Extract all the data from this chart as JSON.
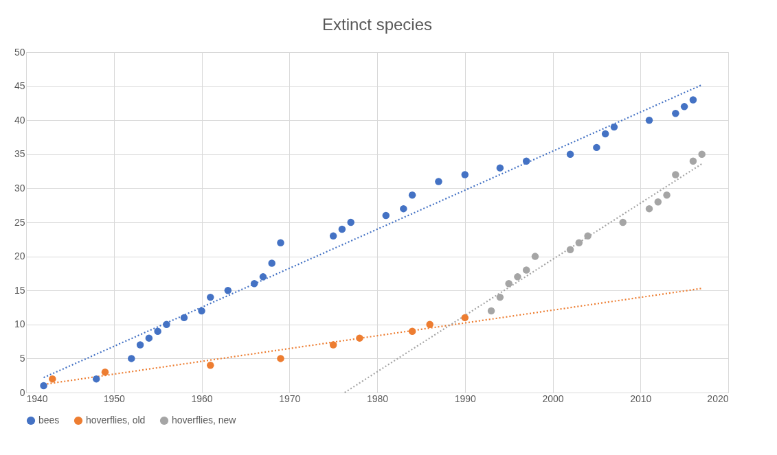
{
  "chart_data": {
    "type": "scatter",
    "title": "Extinct species",
    "xlim": [
      1940,
      2020
    ],
    "xticks": [
      1940,
      1950,
      1960,
      1970,
      1980,
      1990,
      2000,
      2010,
      2020
    ],
    "ylim": [
      0,
      50
    ],
    "yticks": [
      0,
      5,
      10,
      15,
      20,
      25,
      30,
      35,
      40,
      45,
      50
    ],
    "grid": true,
    "legend": "bottom",
    "marker": "circle",
    "series": [
      {
        "name": "bees",
        "color": "#4472c4",
        "x": [
          1942,
          1948,
          1952,
          1953,
          1954,
          1955,
          1956,
          1958,
          1960,
          1961,
          1963,
          1966,
          1967,
          1968,
          1969,
          1975,
          1976,
          1977,
          1981,
          1983,
          1984,
          1987,
          1990,
          1994,
          1997,
          2002,
          2005,
          2006,
          2007,
          2011,
          2014,
          2015,
          2016
        ],
        "values": [
          1,
          2,
          5,
          7,
          8,
          9,
          10,
          11,
          12,
          14,
          15,
          16,
          17,
          19,
          22,
          23,
          24,
          25,
          26,
          27,
          29,
          31,
          32,
          33,
          34,
          35,
          36,
          38,
          39,
          40,
          41,
          42,
          43
        ]
      },
      {
        "name": "hoverflies, old",
        "color": "#ed7d31",
        "x": [
          1943,
          1949,
          1961,
          1969,
          1975,
          1978,
          1984,
          1986,
          1990
        ],
        "values": [
          2,
          3,
          4,
          5,
          7,
          8,
          9,
          10,
          11
        ]
      },
      {
        "name": "hoverflies, new",
        "color": "#a5a5a5",
        "x": [
          1993,
          1994,
          1995,
          1996,
          1997,
          1998,
          2002,
          2003,
          2004,
          2008,
          2011,
          2012,
          2013,
          2014,
          2016,
          2017
        ],
        "values": [
          12,
          14,
          16,
          17,
          18,
          20,
          21,
          22,
          23,
          25,
          27,
          28,
          29,
          32,
          34,
          35
        ]
      },
      {
        "type": "line",
        "line_style": "dotted",
        "marker": "none",
        "color": "#4472c4",
        "x": [
          1942,
          2017
        ],
        "values": [
          2.2,
          45.2
        ]
      },
      {
        "type": "line",
        "line_style": "dotted",
        "marker": "none",
        "color": "#ed7d31",
        "x": [
          1942,
          2017
        ],
        "values": [
          1.2,
          15.3
        ]
      },
      {
        "type": "line",
        "line_style": "dotted",
        "marker": "none",
        "color": "#a5a5a5",
        "x": [
          1976.3,
          2017
        ],
        "values": [
          0,
          33.6
        ]
      }
    ]
  }
}
